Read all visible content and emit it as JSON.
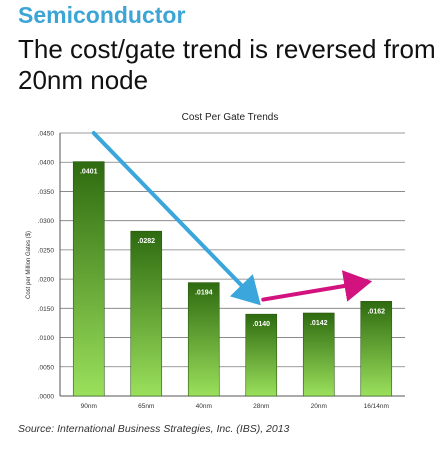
{
  "heading": "Semiconductor",
  "subtitle": "The cost/gate trend is reversed from 20nm node",
  "source": "Source: International Business Strategies, Inc. (IBS), 2013",
  "colors": {
    "heading": "#3ca5d6",
    "bar_top": "#2e6a10",
    "bar_bottom": "#9be05c",
    "arrow_down": "#3aa6dc",
    "arrow_up": "#d2127e"
  },
  "chart_data": {
    "type": "bar",
    "title": "Cost Per Gate Trends",
    "xlabel": "",
    "ylabel": "Cost per Million Gates ($)",
    "categories": [
      "90nm",
      "65nm",
      "40nm",
      "28nm",
      "20nm",
      "16/14nm"
    ],
    "values": [
      0.0401,
      0.0282,
      0.0194,
      0.014,
      0.0142,
      0.0162
    ],
    "data_labels": [
      ".0401",
      ".0282",
      ".0194",
      ".0140",
      ".0142",
      ".0162"
    ],
    "ylim": [
      0,
      0.045
    ],
    "yticks": [
      0,
      0.005,
      0.01,
      0.015,
      0.02,
      0.025,
      0.03,
      0.035,
      0.04,
      0.045
    ],
    "ytick_labels": [
      ".0000",
      ".0050",
      ".0100",
      ".0150",
      ".0200",
      ".0250",
      ".0300",
      ".0350",
      ".0400",
      ".0450"
    ],
    "grid": true,
    "legend": "none",
    "annotations": [
      {
        "kind": "arrow",
        "color": "blue",
        "from": {
          "x": "90nm",
          "y": 0.0402
        },
        "to": {
          "x": "28nm",
          "y": 0.0165
        }
      },
      {
        "kind": "arrow",
        "color": "magenta",
        "from": {
          "x": "28nm",
          "y": 0.0165
        },
        "to": {
          "x": "16/14nm",
          "y": 0.0194
        }
      }
    ]
  }
}
